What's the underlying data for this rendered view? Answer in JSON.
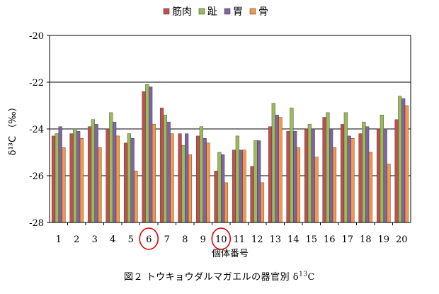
{
  "chart_data": {
    "type": "bar",
    "categories": [
      "1",
      "2",
      "3",
      "4",
      "5",
      "6",
      "7",
      "8",
      "9",
      "10",
      "11",
      "12",
      "13",
      "14",
      "15",
      "16",
      "17",
      "18",
      "19",
      "20"
    ],
    "series": [
      {
        "name": "筋肉",
        "color": "#C0504D",
        "values": [
          -24.3,
          -24.2,
          -23.9,
          -24.0,
          -24.6,
          -22.4,
          -23.1,
          -24.2,
          -24.3,
          -25.8,
          -24.9,
          -25.6,
          -23.9,
          -24.1,
          -24.0,
          -23.5,
          -23.8,
          -24.2,
          -24.0,
          -23.6
        ]
      },
      {
        "name": "趾",
        "color": "#9BBB59",
        "values": [
          -24.2,
          -24.0,
          -23.6,
          -23.3,
          -24.2,
          -22.1,
          -23.4,
          -24.7,
          -23.9,
          -25.0,
          -24.3,
          -24.5,
          -22.9,
          -23.1,
          -23.8,
          -23.3,
          -23.3,
          -23.7,
          -23.4,
          -22.6
        ]
      },
      {
        "name": "胃",
        "color": "#8064A2",
        "values": [
          -23.9,
          -24.1,
          -23.8,
          -23.7,
          -24.4,
          -22.2,
          -23.7,
          -24.2,
          -24.4,
          -25.1,
          -24.9,
          -24.5,
          -23.4,
          -24.1,
          -24.0,
          -24.0,
          -24.3,
          -23.9,
          -24.0,
          -22.7
        ]
      },
      {
        "name": "骨",
        "color": "#F79646",
        "values": [
          -24.8,
          -24.4,
          -24.8,
          -24.3,
          -25.8,
          -23.8,
          -24.2,
          -25.1,
          -24.6,
          -26.3,
          -24.9,
          -26.3,
          -23.5,
          -24.8,
          -25.2,
          -24.8,
          -24.4,
          -25.0,
          -25.5,
          -23.0
        ]
      }
    ],
    "ylim": [
      -28,
      -20
    ],
    "yticks": [
      "-20",
      "-22",
      "-24",
      "-26",
      "-28"
    ],
    "ylabel": "δ¹³C （‰）",
    "xlabel": "個体番号",
    "legend_position": "top",
    "grid": true,
    "highlighted_categories": [
      "6",
      "10"
    ],
    "highlight_color": "#E00000"
  },
  "caption": {
    "prefix": "図２ トウキョウダルマガエルの器官別 δ",
    "sup": "13",
    "suffix": "C"
  }
}
